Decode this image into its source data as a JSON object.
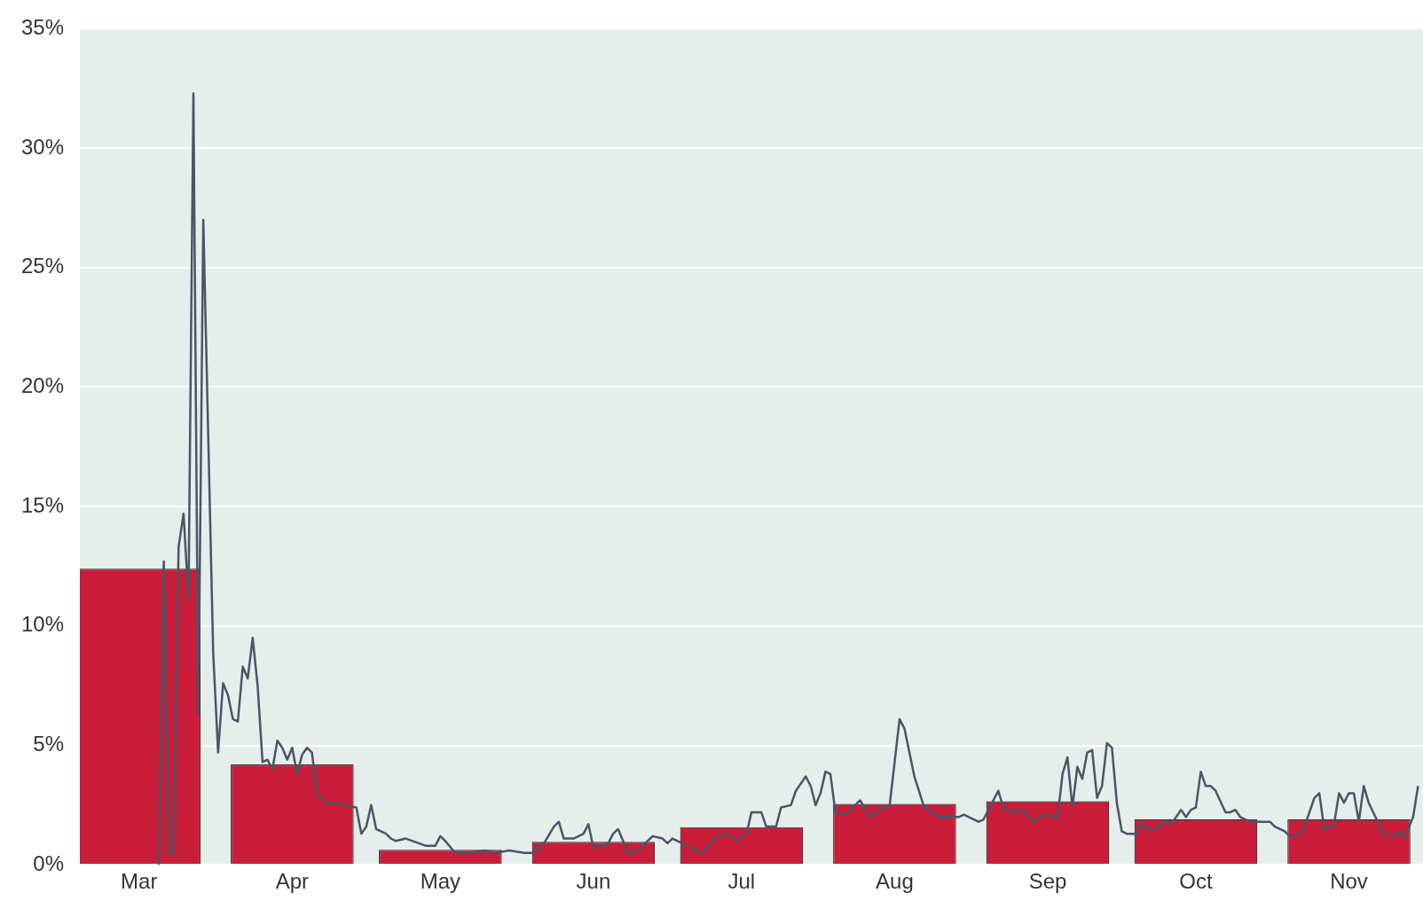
{
  "chart_data": {
    "type": "bar",
    "series": [
      {
        "type": "line",
        "color": "#4a5566",
        "x": [
          "--03-17",
          "--03-18",
          "--03-19",
          "--03-20",
          "--03-21",
          "--03-22",
          "--03-23",
          "--03-24",
          "--03-25",
          "--03-26",
          "--03-28",
          "--03-29",
          "--03-30",
          "--03-31",
          "--04-01",
          "--04-02",
          "--04-03",
          "--04-04",
          "--04-05",
          "--04-06",
          "--04-07",
          "--04-08",
          "--04-09",
          "--04-10",
          "--04-11",
          "--04-12",
          "--04-13",
          "--04-14",
          "--04-15",
          "--04-16",
          "--04-17",
          "--04-18",
          "--04-20",
          "--04-22",
          "--04-23",
          "--04-26",
          "--04-27",
          "--04-28",
          "--04-29",
          "--04-30",
          "--05-02",
          "--05-03",
          "--05-04",
          "--05-06",
          "--05-10",
          "--05-12",
          "--05-13",
          "--05-14",
          "--05-16",
          "--05-19",
          "--05-22",
          "--05-24",
          "--05-27",
          "--05-30",
          "--06-01",
          "--06-03",
          "--06-05",
          "--06-06",
          "--06-07",
          "--06-09",
          "--06-11",
          "--06-12",
          "--06-13",
          "--06-16",
          "--06-17",
          "--06-18",
          "--06-20",
          "--06-22",
          "--06-24",
          "--06-25",
          "--06-27",
          "--06-28",
          "--06-29",
          "--07-01",
          "--07-05",
          "--07-08",
          "--07-10",
          "--07-12",
          "--07-14",
          "--07-15",
          "--07-17",
          "--07-18",
          "--07-20",
          "--07-21",
          "--07-23",
          "--07-24",
          "--07-26",
          "--07-27",
          "--07-28",
          "--07-29",
          "--07-30",
          "--07-31",
          "--08-01",
          "--08-03",
          "--08-06",
          "--08-08",
          "--08-10",
          "--08-12",
          "--08-14",
          "--08-15",
          "--08-17",
          "--08-19",
          "--08-22",
          "--08-24",
          "--08-26",
          "--08-27",
          "--08-30",
          "--08-31",
          "--09-03",
          "--09-04",
          "--09-06",
          "--09-08",
          "--09-10",
          "--09-12",
          "--09-15",
          "--09-16",
          "--09-17",
          "--09-18",
          "--09-19",
          "--09-20",
          "--09-21",
          "--09-22",
          "--09-23",
          "--09-24",
          "--09-25",
          "--09-26",
          "--09-27",
          "--09-28",
          "--09-29",
          "--10-01",
          "--10-02",
          "--10-04",
          "--10-07",
          "--10-08",
          "--10-10",
          "--10-11",
          "--10-12",
          "--10-13",
          "--10-14",
          "--10-15",
          "--10-16",
          "--10-17",
          "--10-19",
          "--10-20",
          "--10-21",
          "--10-22",
          "--10-24",
          "--10-26",
          "--10-28",
          "--10-29",
          "--10-31",
          "--11-01",
          "--11-03",
          "--11-04",
          "--11-06",
          "--11-07",
          "--11-08",
          "--11-10",
          "--11-11",
          "--11-12",
          "--11-13",
          "--11-14",
          "--11-15",
          "--11-16",
          "--11-17",
          "--11-20",
          "--11-22",
          "--11-23",
          "--11-24",
          "--11-25",
          "--11-26",
          "--11-27"
        ],
        "values": [
          0,
          12.7,
          0.5,
          0.5,
          13.3,
          14.7,
          11.1,
          32.3,
          6.3,
          27.0,
          8.9,
          4.7,
          7.6,
          7.1,
          6.1,
          6.0,
          8.3,
          7.8,
          9.5,
          7.5,
          4.3,
          4.4,
          4.0,
          5.2,
          4.9,
          4.4,
          4.9,
          3.8,
          4.6,
          4.9,
          4.7,
          3.0,
          2.6,
          2.6,
          2.5,
          2.4,
          1.3,
          1.6,
          2.5,
          1.5,
          1.3,
          1.1,
          1.0,
          1.1,
          0.8,
          0.8,
          1.2,
          1.0,
          0.5,
          0.5,
          0.6,
          0.5,
          0.6,
          0.5,
          0.5,
          0.9,
          1.6,
          1.8,
          1.1,
          1.1,
          1.3,
          1.7,
          0.7,
          0.9,
          1.3,
          1.5,
          0.5,
          0.6,
          1.0,
          1.2,
          1.1,
          0.9,
          1.1,
          0.9,
          0.5,
          1.2,
          1.3,
          1.0,
          1.3,
          2.2,
          2.2,
          1.6,
          1.6,
          2.4,
          2.5,
          3.1,
          3.7,
          3.3,
          2.5,
          3.0,
          3.9,
          3.8,
          2.2,
          2.1,
          2.7,
          2.0,
          2.3,
          2.5,
          6.1,
          5.7,
          3.7,
          2.4,
          2.0,
          2.0,
          2.0,
          2.1,
          1.8,
          1.9,
          3.1,
          2.4,
          2.2,
          2.3,
          1.8,
          2.1,
          2.0,
          3.8,
          4.5,
          2.4,
          4.1,
          3.6,
          4.7,
          4.8,
          2.8,
          3.3,
          5.1,
          4.9,
          2.6,
          1.4,
          1.3,
          1.3,
          1.7,
          1.4,
          1.8,
          1.7,
          2.3,
          2.0,
          2.3,
          2.4,
          3.9,
          3.3,
          3.3,
          3.1,
          2.2,
          2.2,
          2.3,
          2.0,
          1.8,
          1.8,
          1.8,
          1.6,
          1.4,
          1.2,
          1.3,
          1.6,
          2.8,
          3.0,
          1.5,
          1.7,
          3.0,
          2.6,
          3.0,
          3.0,
          1.8,
          3.3,
          2.6,
          1.3,
          1.2,
          1.4,
          1.1,
          1.5,
          2.0,
          3.3
        ]
      },
      {
        "color": "#c8102e",
        "x": [
          "--03-13",
          "--04-13",
          "--05-13",
          "--06-13",
          "--07-13",
          "--08-13",
          "--09-13",
          "--10-13",
          "--11-13"
        ],
        "values": [
          12.4,
          4.2,
          0.63,
          0.96,
          1.58,
          2.55,
          2.66,
          1.91,
          1.91
        ]
      }
    ],
    "xlim": [
      "--03-01",
      "--11-28"
    ],
    "xticks": [
      {
        "value": "--03-13",
        "label": "Mar"
      },
      {
        "value": "--04-13",
        "label": "Apr"
      },
      {
        "value": "--05-13",
        "label": "May"
      },
      {
        "value": "--06-13",
        "label": "Jun"
      },
      {
        "value": "--07-13",
        "label": "Jul"
      },
      {
        "value": "--08-13",
        "label": "Aug"
      },
      {
        "value": "--09-13",
        "label": "Sep"
      },
      {
        "value": "--10-13",
        "label": "Oct"
      },
      {
        "value": "--11-13",
        "label": "Nov"
      }
    ],
    "ylim": [
      0,
      35
    ],
    "yticks": [
      {
        "value": 0,
        "label": "0%"
      },
      {
        "value": 5,
        "label": "5%"
      },
      {
        "value": 10,
        "label": "10%"
      },
      {
        "value": 15,
        "label": "15%"
      },
      {
        "value": 20,
        "label": "20%"
      },
      {
        "value": 25,
        "label": "25%"
      },
      {
        "value": 30,
        "label": "30%"
      },
      {
        "value": 35,
        "label": "35%"
      }
    ],
    "grid": "y",
    "marker": "none"
  }
}
